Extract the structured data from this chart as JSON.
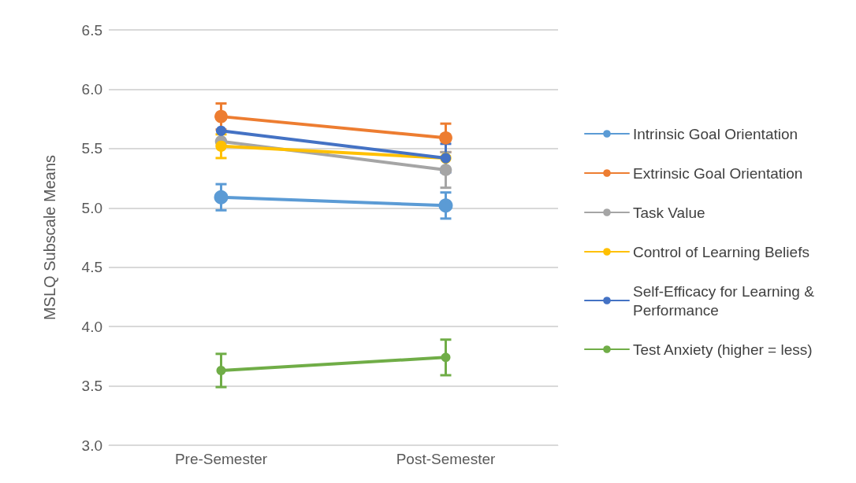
{
  "chart_data": {
    "type": "line",
    "ylabel": "MSLQ Subscale Means",
    "categories": [
      "Pre-Semester",
      "Post-Semester"
    ],
    "ylim": [
      3.0,
      6.5
    ],
    "yticks": [
      {
        "value": 3.0,
        "label": "3.0"
      },
      3.5,
      {
        "value": 4.0,
        "label": "4.0"
      },
      4.5,
      {
        "value": 5.0,
        "label": "5.0"
      },
      5.5,
      {
        "value": 6.0,
        "label": "6.0"
      },
      6.5
    ],
    "grid": "y",
    "legend": "right",
    "marker": "circle",
    "line_style": "solid",
    "series": [
      {
        "name": "Intrinsic Goal Orientation",
        "color": "#5b9bd5",
        "values": [
          5.09,
          5.02
        ],
        "errors": [
          0.11,
          0.11
        ]
      },
      {
        "name": "Extrinsic Goal Orientation",
        "color": "#ed7d31",
        "values": [
          5.77,
          5.59
        ],
        "errors": [
          0.11,
          0.12
        ]
      },
      {
        "name": "Task Value",
        "color": "#a5a5a5",
        "values": [
          5.56,
          5.32
        ],
        "errors": [
          null,
          0.15
        ]
      },
      {
        "name": "Control of Learning Beliefs",
        "color": "#ffc000",
        "values": [
          5.52,
          5.42
        ],
        "errors": [
          0.1,
          null
        ]
      },
      {
        "name": "Self-Efficacy for Learning & Performance",
        "color": "#4472c4",
        "values": [
          5.65,
          5.42
        ],
        "errors": [
          null,
          0.12
        ]
      },
      {
        "name": "Test Anxiety (higher = less)",
        "color": "#70ad47",
        "values": [
          3.63,
          3.74
        ],
        "errors": [
          0.14,
          0.15
        ]
      }
    ]
  }
}
